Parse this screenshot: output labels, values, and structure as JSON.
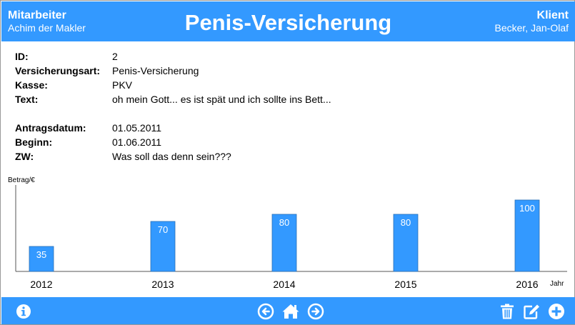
{
  "header": {
    "left_role": "Mitarbeiter",
    "left_name": "Achim der Makler",
    "title": "Penis-Versicherung",
    "right_role": "Klient",
    "right_name": "Becker, Jan-Olaf"
  },
  "details": {
    "id_label": "ID:",
    "id_value": "2",
    "type_label": "Versicherungsart:",
    "type_value": "Penis-Versicherung",
    "kasse_label": "Kasse:",
    "kasse_value": "PKV",
    "text_label": "Text:",
    "text_value": "oh mein Gott... es ist spät und ich sollte ins Bett...",
    "antrag_label": "Antragsdatum:",
    "antrag_value": "01.05.2011",
    "beginn_label": "Beginn:",
    "beginn_value": "01.06.2011",
    "zw_label": "ZW:",
    "zw_value": "Was soll das denn sein???"
  },
  "chart_data": {
    "type": "bar",
    "categories": [
      "2012",
      "2013",
      "2014",
      "2015",
      "2016"
    ],
    "values": [
      35,
      70,
      80,
      80,
      100
    ],
    "xlabel": "Jahr",
    "ylabel": "Betrag/€",
    "ylim": [
      0,
      100
    ],
    "grid": false,
    "bar_color": "#3399ff"
  },
  "footer": {
    "info_icon": "info-circle-icon",
    "back_icon": "arrow-left-circle-icon",
    "home_icon": "home-icon",
    "forward_icon": "arrow-right-circle-icon",
    "delete_icon": "trash-icon",
    "edit_icon": "edit-icon",
    "add_icon": "plus-circle-icon"
  },
  "colors": {
    "accent": "#3399ff",
    "text": "#000000"
  }
}
